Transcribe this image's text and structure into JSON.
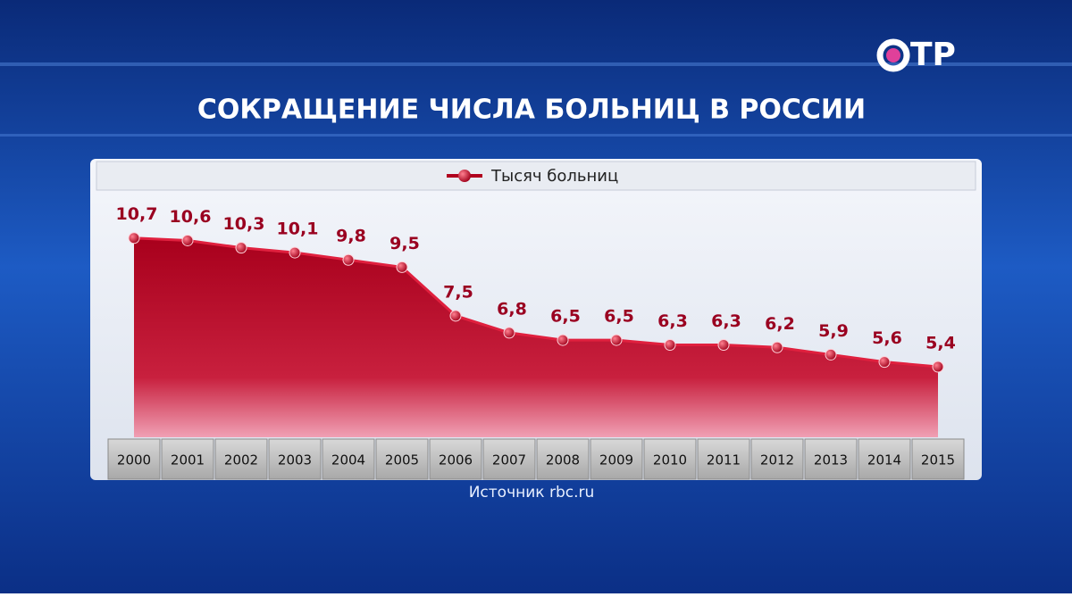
{
  "logo": "ТР",
  "chart_data": {
    "type": "area",
    "title": "СОКРАЩЕНИЕ ЧИСЛА БОЛЬНИЦ В РОССИИ",
    "source": "Источник rbc.ru",
    "categories": [
      "2000",
      "2001",
      "2002",
      "2003",
      "2004",
      "2005",
      "2006",
      "2007",
      "2008",
      "2009",
      "2010",
      "2011",
      "2012",
      "2013",
      "2014",
      "2015"
    ],
    "series": [
      {
        "name": "Тысяч больниц",
        "color": "#b0001e",
        "values": [
          10.7,
          10.6,
          10.3,
          10.1,
          9.8,
          9.5,
          7.5,
          6.8,
          6.5,
          6.5,
          6.3,
          6.3,
          6.2,
          5.9,
          5.6,
          5.4
        ],
        "value_labels": [
          "10,7",
          "10,6",
          "10,3",
          "10,1",
          "9,8",
          "9,5",
          "7,5",
          "6,8",
          "6,5",
          "6,5",
          "6,3",
          "6,3",
          "6,2",
          "5,9",
          "5,6",
          "5,4"
        ]
      }
    ],
    "ylim": [
      2.5,
      12.6
    ],
    "legend": "top"
  }
}
